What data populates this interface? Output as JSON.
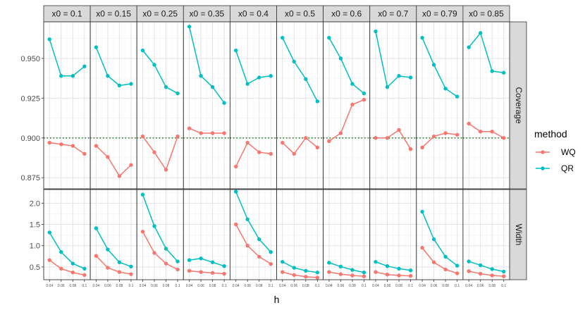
{
  "chart_data": {
    "type": "line",
    "facets": {
      "columns": [
        "x0 = 0.1",
        "x0 = 0.15",
        "x0 = 0.25",
        "x0 = 0.35",
        "x0 = 0.4",
        "x0 = 0.5",
        "x0 = 0.6",
        "x0 = 0.7",
        "x0 = 0.79",
        "x0 = 0.85"
      ],
      "rows": [
        "Coverage",
        "Width"
      ]
    },
    "x": [
      0.04,
      0.06,
      0.08,
      0.1
    ],
    "x_tick_labels": [
      "0.04",
      "0.06",
      "0.08",
      "0.1"
    ],
    "xlabel": "h",
    "xlim": [
      0.03,
      0.11
    ],
    "rows": {
      "Coverage": {
        "ylim": [
          0.868,
          0.973
        ],
        "yticks": [
          0.875,
          0.9,
          0.925,
          0.95
        ],
        "ytick_labels": [
          "0.875",
          "0.900",
          "0.925",
          "0.950"
        ],
        "reference_line": 0.9
      },
      "Width": {
        "ylim": [
          0.2,
          2.32
        ],
        "yticks": [
          0.5,
          1.0,
          1.5,
          2.0
        ],
        "ytick_labels": [
          "0.5",
          "1.0",
          "1.5",
          "2.0"
        ]
      }
    },
    "series": [
      {
        "name": "WQ",
        "color": "#F8766D",
        "coverage": [
          [
            0.897,
            0.896,
            0.895,
            0.89
          ],
          [
            0.895,
            0.888,
            0.876,
            0.883
          ],
          [
            0.901,
            0.891,
            0.88,
            0.901
          ],
          [
            0.906,
            0.903,
            0.903,
            0.903
          ],
          [
            0.882,
            0.897,
            0.891,
            0.89
          ],
          [
            0.897,
            0.89,
            0.9,
            0.894
          ],
          [
            0.898,
            0.903,
            0.921,
            0.924
          ],
          [
            0.9,
            0.9,
            0.905,
            0.893
          ],
          [
            0.894,
            0.901,
            0.903,
            0.902
          ],
          [
            0.909,
            0.904,
            0.904,
            0.9
          ]
        ],
        "width": [
          [
            0.66,
            0.46,
            0.37,
            0.31
          ],
          [
            0.76,
            0.48,
            0.38,
            0.33
          ],
          [
            1.33,
            0.83,
            0.58,
            0.44
          ],
          [
            0.41,
            0.38,
            0.36,
            0.34
          ],
          [
            1.5,
            1.0,
            0.74,
            0.57
          ],
          [
            0.38,
            0.31,
            0.27,
            0.25
          ],
          [
            0.38,
            0.33,
            0.3,
            0.28
          ],
          [
            0.38,
            0.32,
            0.3,
            0.29
          ],
          [
            0.95,
            0.61,
            0.44,
            0.35
          ],
          [
            0.4,
            0.34,
            0.3,
            0.28
          ]
        ]
      },
      {
        "name": "QR",
        "color": "#00BFC4",
        "coverage": [
          [
            0.962,
            0.939,
            0.939,
            0.945
          ],
          [
            0.957,
            0.939,
            0.933,
            0.934
          ],
          [
            0.955,
            0.946,
            0.932,
            0.928
          ],
          [
            0.97,
            0.939,
            0.932,
            0.922
          ],
          [
            0.955,
            0.934,
            0.938,
            0.939
          ],
          [
            0.963,
            0.948,
            0.937,
            0.923
          ],
          [
            0.963,
            0.95,
            0.934,
            0.928
          ],
          [
            0.967,
            0.932,
            0.939,
            0.938
          ],
          [
            0.963,
            0.946,
            0.931,
            0.926
          ],
          [
            0.957,
            0.966,
            0.942,
            0.941
          ]
        ],
        "width": [
          [
            1.31,
            0.85,
            0.58,
            0.46
          ],
          [
            1.41,
            0.91,
            0.61,
            0.51
          ],
          [
            2.2,
            1.46,
            0.93,
            0.63
          ],
          [
            0.66,
            0.7,
            0.61,
            0.52
          ],
          [
            2.27,
            1.62,
            1.15,
            0.85
          ],
          [
            0.62,
            0.48,
            0.41,
            0.37
          ],
          [
            0.6,
            0.51,
            0.43,
            0.37
          ],
          [
            0.62,
            0.52,
            0.46,
            0.42
          ],
          [
            1.8,
            1.15,
            0.74,
            0.53
          ],
          [
            0.63,
            0.54,
            0.45,
            0.39
          ]
        ]
      }
    ],
    "legend": {
      "title": "method",
      "position": "right",
      "entries": [
        "WQ",
        "QR"
      ]
    },
    "grid": true,
    "reference_line_color": "#1a7a1a"
  }
}
